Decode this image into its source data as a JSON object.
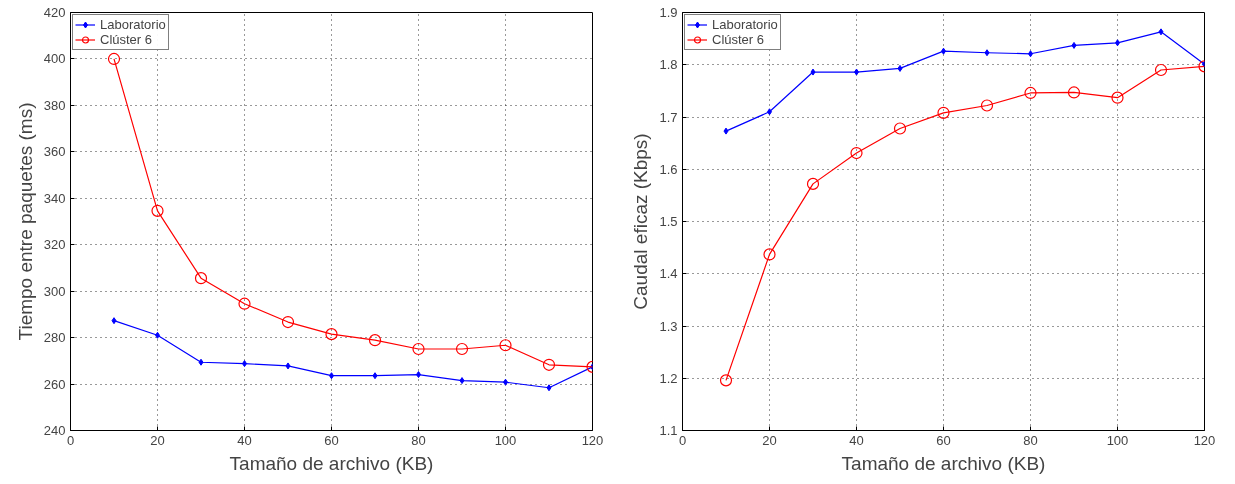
{
  "chart_data": [
    {
      "type": "line",
      "xlabel": "Tamaño de archivo (KB)",
      "ylabel": "Tiempo entre paquetes (ms)",
      "x": [
        10,
        20,
        30,
        40,
        50,
        60,
        70,
        80,
        90,
        100,
        110,
        120
      ],
      "xlim": [
        0,
        120
      ],
      "xticks": [
        0,
        20,
        40,
        60,
        80,
        100,
        120
      ],
      "ylim": [
        240,
        420
      ],
      "yticks": [
        240,
        260,
        280,
        300,
        320,
        340,
        360,
        380,
        400,
        420
      ],
      "grid": true,
      "legend": "top left",
      "line_style": "solid",
      "series": [
        {
          "name": "Laboratorio",
          "color": "#0000ff",
          "marker": "diamond",
          "values": [
            287.3,
            281,
            269.4,
            268.8,
            267.8,
            263.6,
            263.6,
            264.1,
            261.5,
            260.8,
            258.4,
            267.4
          ]
        },
        {
          "name": "Clúster 6",
          "color": "#ff0000",
          "marker": "circle",
          "values": [
            400,
            334.6,
            305.6,
            294.6,
            286.7,
            281.5,
            278.9,
            275.1,
            275.1,
            276.7,
            268.3,
            267.4
          ]
        }
      ]
    },
    {
      "type": "line",
      "xlabel": "Tamaño de archivo (KB)",
      "ylabel": "Caudal eficaz (Kbps)",
      "x": [
        10,
        20,
        30,
        40,
        50,
        60,
        70,
        80,
        90,
        100,
        110,
        120
      ],
      "xlim": [
        0,
        120
      ],
      "xticks": [
        0,
        20,
        40,
        60,
        80,
        100,
        120
      ],
      "ylim": [
        1.1,
        1.9
      ],
      "yticks": [
        1.1,
        1.2,
        1.3,
        1.4,
        1.5,
        1.6,
        1.7,
        1.8,
        1.9
      ],
      "grid": true,
      "legend": "top left",
      "line_style": "solid",
      "series": [
        {
          "name": "Laboratorio",
          "color": "#0000ff",
          "marker": "diamond",
          "values": [
            1.673,
            1.71,
            1.786,
            1.786,
            1.793,
            1.826,
            1.823,
            1.821,
            1.837,
            1.842,
            1.863,
            1.801
          ]
        },
        {
          "name": "Clúster 6",
          "color": "#ff0000",
          "marker": "circle",
          "values": [
            1.196,
            1.437,
            1.572,
            1.631,
            1.678,
            1.708,
            1.722,
            1.746,
            1.747,
            1.737,
            1.79,
            1.797
          ]
        }
      ]
    }
  ]
}
